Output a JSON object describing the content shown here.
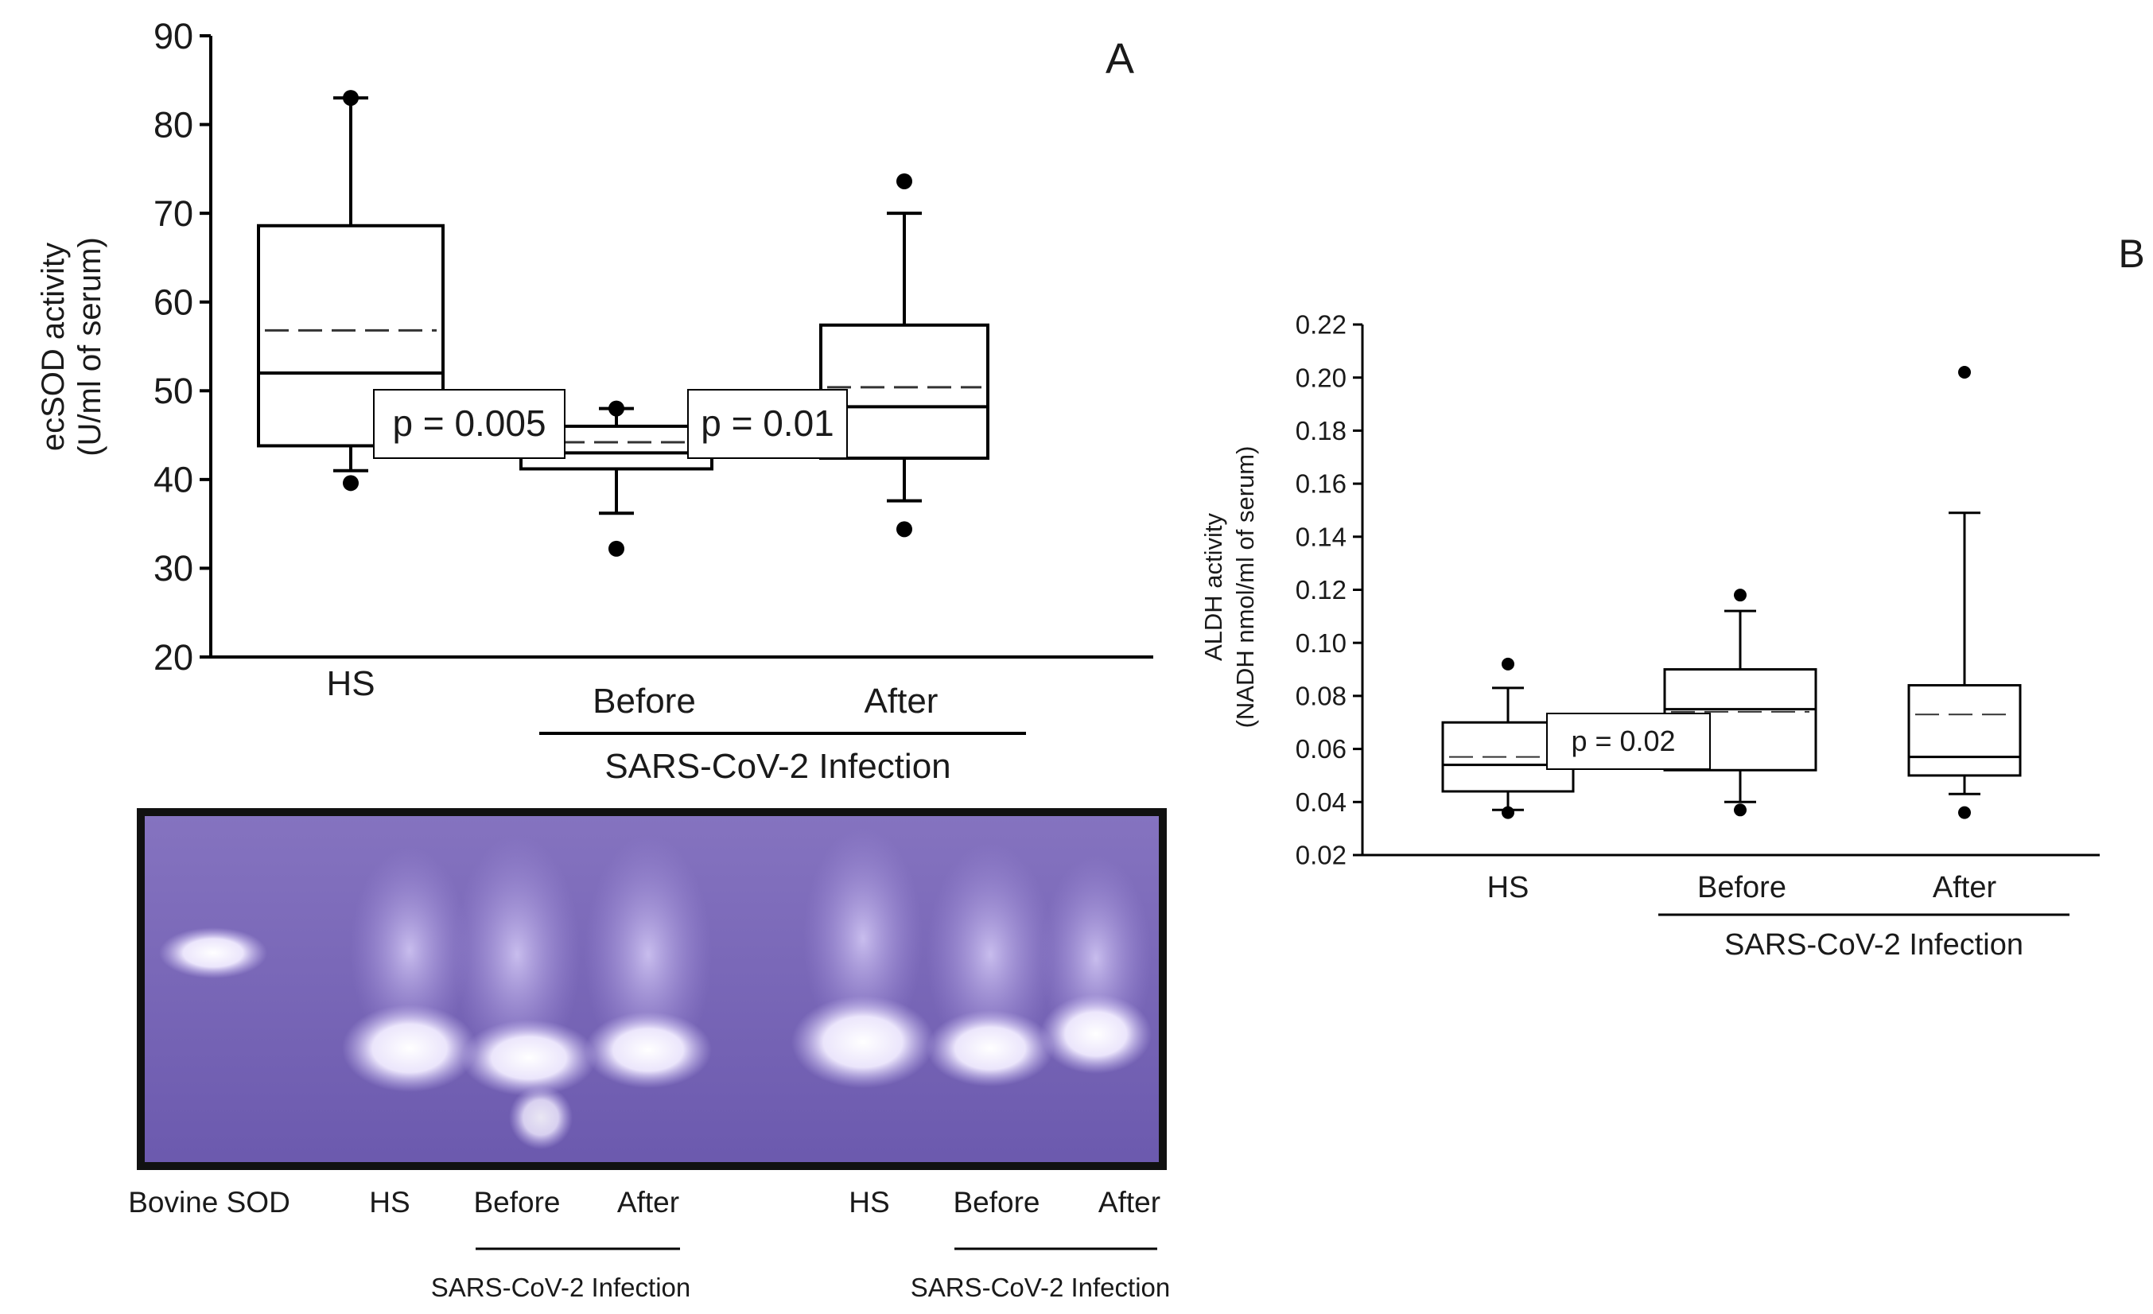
{
  "chart_data": [
    {
      "panel": "A",
      "type": "box",
      "ylabel_line1": "ecSOD activity",
      "ylabel_line2": "(U/ml of serum)",
      "ylim": [
        20,
        90
      ],
      "yticks": [
        "20",
        "30",
        "40",
        "50",
        "60",
        "70",
        "80",
        "90"
      ],
      "categories": [
        "HS",
        "Before",
        "After"
      ],
      "group_label": "SARS-CoV-2 Infection",
      "boxes": [
        {
          "name": "HS",
          "whisker_low": 41,
          "q1": 43.8,
          "median": 52,
          "mean": 56.8,
          "q3": 68.6,
          "whisker_high": 83,
          "outliers": [
            39.6,
            83
          ]
        },
        {
          "name": "Before",
          "whisker_low": 36.2,
          "q1": 41.2,
          "median": 43,
          "mean": 44.2,
          "q3": 46,
          "whisker_high": 48,
          "outliers": [
            32.2,
            48
          ]
        },
        {
          "name": "After",
          "whisker_low": 37.6,
          "q1": 42.4,
          "median": 48.2,
          "mean": 50.4,
          "q3": 57.4,
          "whisker_high": 70,
          "outliers": [
            34.4,
            73.6
          ]
        }
      ],
      "annotations": [
        "p = 0.005",
        "p = 0.01"
      ],
      "mean_line": "dashed",
      "median_line": "solid"
    },
    {
      "panel": "B",
      "type": "box",
      "ylabel_line1": "ALDH activity",
      "ylabel_line2": "(NADH nmol/ml of serum)",
      "ylim": [
        0.02,
        0.22
      ],
      "yticks": [
        "0.02",
        "0.04",
        "0.06",
        "0.08",
        "0.10",
        "0.12",
        "0.14",
        "0.16",
        "0.18",
        "0.20",
        "0.22"
      ],
      "categories": [
        "HS",
        "Before",
        "After"
      ],
      "group_label": "SARS-CoV-2 Infection",
      "boxes": [
        {
          "name": "HS",
          "whisker_low": 0.037,
          "q1": 0.044,
          "median": 0.054,
          "mean": 0.057,
          "q3": 0.07,
          "whisker_high": 0.083,
          "outliers": [
            0.036,
            0.092
          ]
        },
        {
          "name": "Before",
          "whisker_low": 0.04,
          "q1": 0.052,
          "median": 0.075,
          "mean": 0.074,
          "q3": 0.09,
          "whisker_high": 0.112,
          "outliers": [
            0.037,
            0.118
          ]
        },
        {
          "name": "After",
          "whisker_low": 0.043,
          "q1": 0.05,
          "median": 0.057,
          "mean": 0.073,
          "q3": 0.084,
          "whisker_high": 0.149,
          "outliers": [
            0.036,
            0.202
          ]
        }
      ],
      "annotations": [
        "p = 0.02"
      ],
      "mean_line": "dashed",
      "median_line": "solid"
    }
  ],
  "gel": {
    "lanes": [
      "Bovine SOD",
      "HS",
      "Before",
      "After",
      "HS",
      "Before",
      "After"
    ],
    "group_label": "SARS-CoV-2 Infection",
    "background_color": "#7b68b8",
    "band_color": "#f4f0ff"
  }
}
